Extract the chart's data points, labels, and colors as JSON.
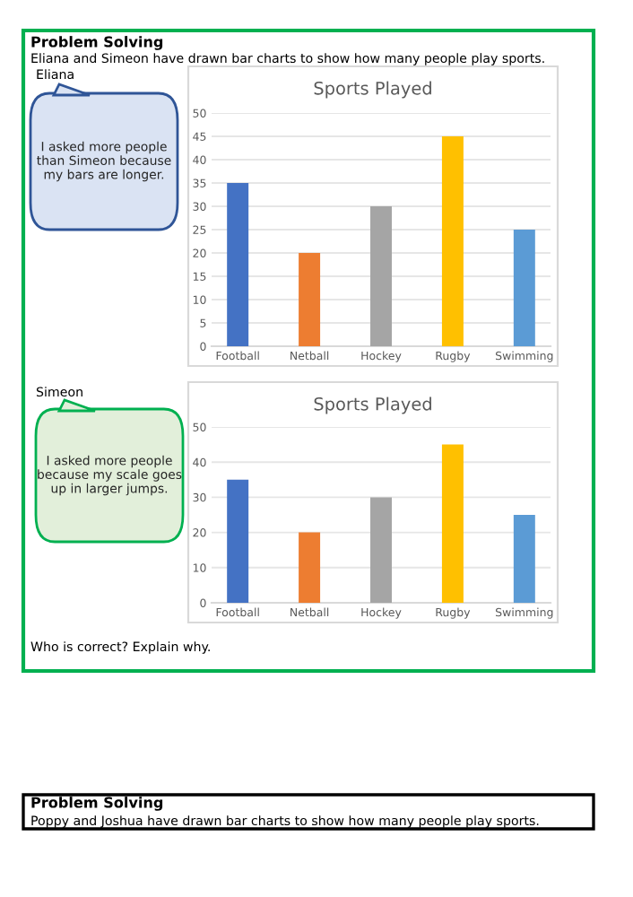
{
  "chart_data": [
    {
      "type": "bar",
      "title": "Sports Played",
      "categories": [
        "Football",
        "Netball",
        "Hockey",
        "Rugby",
        "Swimming"
      ],
      "values": [
        35,
        20,
        30,
        45,
        25
      ],
      "colors": [
        "#4472c4",
        "#ed7d31",
        "#a5a5a5",
        "#ffc000",
        "#5b9bd5"
      ],
      "ylim": [
        0,
        50
      ],
      "yticks": [
        0,
        5,
        10,
        15,
        20,
        25,
        30,
        35,
        40,
        45,
        50
      ],
      "grid": "y",
      "annotations": [
        "Problem Solving",
        "Eliana and Simeon have drawn bar charts to show how many people play sports.",
        "Eliana",
        "I asked more people than Simeon because my bars are longer."
      ]
    },
    {
      "type": "bar",
      "title": "Sports Played",
      "categories": [
        "Football",
        "Netball",
        "Hockey",
        "Rugby",
        "Swimming"
      ],
      "values": [
        35,
        20,
        30,
        45,
        25
      ],
      "colors": [
        "#4472c4",
        "#ed7d31",
        "#a5a5a5",
        "#ffc000",
        "#5b9bd5"
      ],
      "ylim": [
        0,
        50
      ],
      "yticks": [
        0,
        10,
        20,
        30,
        40,
        50
      ],
      "grid": "y",
      "annotations": [
        "Simeon",
        "I asked more people because my scale goes up in larger jumps.",
        "Who is correct? Explain why.",
        "Problem Solving",
        "Poppy and Joshua have drawn bar charts to show how many people play sports."
      ]
    }
  ]
}
